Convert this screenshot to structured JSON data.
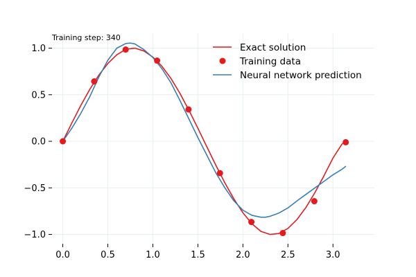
{
  "chart_data": {
    "type": "line",
    "title": "",
    "xlabel": "",
    "ylabel": "",
    "annotation": "Training step: 340",
    "xlim": [
      -0.12,
      3.46
    ],
    "ylim": [
      -1.1,
      1.16
    ],
    "xticks": [
      0.0,
      0.5,
      1.0,
      1.5,
      2.0,
      2.5,
      3.0
    ],
    "xtick_labels": [
      "0.0",
      "0.5",
      "1.0",
      "1.5",
      "2.0",
      "2.5",
      "3.0"
    ],
    "yticks": [
      -1.0,
      -0.5,
      0.0,
      0.5,
      1.0
    ],
    "ytick_labels": [
      "−1.0",
      "−0.5",
      "0.0",
      "0.5",
      "1.0"
    ],
    "grid": true,
    "legend_position": "top-right",
    "series": [
      {
        "name": "Exact solution",
        "kind": "line",
        "color": "#e41a1c",
        "x": [
          0.0,
          0.1,
          0.2,
          0.3,
          0.4,
          0.5,
          0.6,
          0.7,
          0.8,
          0.9,
          1.0,
          1.1,
          1.2,
          1.3,
          1.4,
          1.5,
          1.6,
          1.7,
          1.8,
          1.9,
          2.0,
          2.1,
          2.2,
          2.3,
          2.4,
          2.5,
          2.6,
          2.7,
          2.8,
          2.9,
          3.0,
          3.1,
          3.14
        ],
        "y": [
          0.0,
          0.196,
          0.385,
          0.558,
          0.71,
          0.835,
          0.929,
          0.988,
          1.0,
          0.97,
          0.904,
          0.806,
          0.676,
          0.516,
          0.334,
          0.14,
          -0.06,
          -0.258,
          -0.447,
          -0.619,
          -0.767,
          -0.885,
          -0.967,
          -1.0,
          -0.99,
          -0.935,
          -0.84,
          -0.71,
          -0.55,
          -0.37,
          -0.18,
          -0.03,
          -0.01
        ]
      },
      {
        "name": "Training data",
        "kind": "scatter",
        "color": "#e41a1c",
        "x": [
          0.0,
          0.349,
          0.698,
          1.047,
          1.396,
          1.745,
          2.094,
          2.443,
          2.793,
          3.142
        ],
        "y": [
          0.0,
          0.643,
          0.985,
          0.866,
          0.342,
          -0.342,
          -0.866,
          -0.985,
          -0.643,
          -0.01
        ]
      },
      {
        "name": "Neural network prediction",
        "kind": "line",
        "color": "#377eb8",
        "x": [
          0.0,
          0.1,
          0.2,
          0.3,
          0.4,
          0.5,
          0.6,
          0.7,
          0.75,
          0.8,
          0.9,
          1.0,
          1.1,
          1.2,
          1.3,
          1.4,
          1.5,
          1.6,
          1.7,
          1.8,
          1.9,
          2.0,
          2.1,
          2.2,
          2.25,
          2.3,
          2.4,
          2.5,
          2.6,
          2.7,
          2.8,
          2.9,
          3.0,
          3.1,
          3.14
        ],
        "y": [
          0.0,
          0.14,
          0.3,
          0.48,
          0.69,
          0.87,
          1.0,
          1.05,
          1.055,
          1.045,
          0.985,
          0.9,
          0.78,
          0.63,
          0.44,
          0.24,
          0.04,
          -0.15,
          -0.34,
          -0.5,
          -0.64,
          -0.74,
          -0.795,
          -0.815,
          -0.815,
          -0.805,
          -0.77,
          -0.715,
          -0.64,
          -0.57,
          -0.5,
          -0.43,
          -0.36,
          -0.3,
          -0.27
        ]
      }
    ]
  }
}
